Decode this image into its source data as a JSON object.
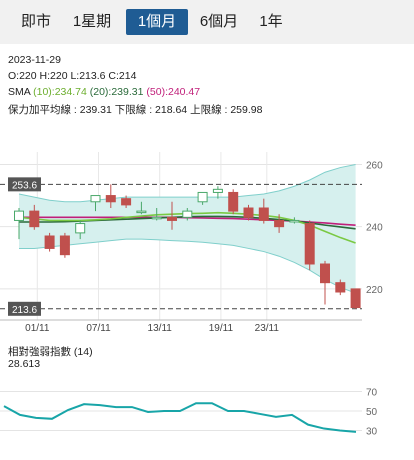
{
  "tabs": [
    {
      "label": "即市",
      "active": false
    },
    {
      "label": "1星期",
      "active": false
    },
    {
      "label": "1個月",
      "active": true
    },
    {
      "label": "6個月",
      "active": false
    },
    {
      "label": "1年",
      "active": false
    }
  ],
  "info": {
    "date": "2023-11-29",
    "ohlc": "O:220   H:220   L:213.6   C:214",
    "sma_label": "SMA",
    "sma10": "(10):234.74",
    "sma20": "(20):239.31",
    "sma50": "(50):240.47",
    "bollinger": "保力加平均線 : 239.31 下限線 : 218.64 上限線 : 259.98"
  },
  "rsi": {
    "title": "相對強弱指數 (14)",
    "value": "28.613"
  },
  "colors": {
    "up": "#4aa86a",
    "down": "#c0504d",
    "sma10": "#7ac943",
    "sma20": "#2a6a3a",
    "sma50": "#c01f7a",
    "band_fill": "#d6f0ee",
    "band_line": "#7fcfcb",
    "rsi_line": "#18a5a8",
    "tab_active": "#1f5c94"
  },
  "chart_data": {
    "type": "candlestick",
    "x_ticks": [
      "01/11",
      "07/11",
      "13/11",
      "19/11",
      "23/11"
    ],
    "y_ticks": [
      220,
      240,
      260
    ],
    "ylim": [
      210,
      264
    ],
    "price_tags": {
      "high": "253.6",
      "low": "213.6"
    },
    "candles": [
      {
        "o": 242,
        "h": 246,
        "l": 236,
        "c": 245
      },
      {
        "o": 245,
        "h": 247,
        "l": 239,
        "c": 240
      },
      {
        "o": 237,
        "h": 238,
        "l": 232,
        "c": 233
      },
      {
        "o": 237,
        "h": 238,
        "l": 230,
        "c": 231
      },
      {
        "o": 238,
        "h": 242,
        "l": 236,
        "c": 241
      },
      {
        "o": 248,
        "h": 250,
        "l": 245,
        "c": 250
      },
      {
        "o": 250,
        "h": 253.6,
        "l": 246,
        "c": 248
      },
      {
        "o": 249,
        "h": 250,
        "l": 246,
        "c": 247
      },
      {
        "o": 245,
        "h": 248,
        "l": 244,
        "c": 245
      },
      {
        "o": 243,
        "h": 246,
        "l": 242,
        "c": 243
      },
      {
        "o": 243,
        "h": 248,
        "l": 239,
        "c": 242
      },
      {
        "o": 243,
        "h": 246,
        "l": 242,
        "c": 245
      },
      {
        "o": 248,
        "h": 251,
        "l": 247,
        "c": 251
      },
      {
        "o": 251,
        "h": 253,
        "l": 249,
        "c": 252
      },
      {
        "o": 251,
        "h": 252,
        "l": 244,
        "c": 245
      },
      {
        "o": 246,
        "h": 247,
        "l": 242,
        "c": 243
      },
      {
        "o": 246,
        "h": 249,
        "l": 241,
        "c": 242
      },
      {
        "o": 242,
        "h": 244,
        "l": 238,
        "c": 240
      },
      {
        "o": 242,
        "h": 243,
        "l": 241,
        "c": 242
      },
      {
        "o": 241,
        "h": 242,
        "l": 226,
        "c": 228
      },
      {
        "o": 228,
        "h": 229,
        "l": 215,
        "c": 222
      },
      {
        "o": 222,
        "h": 223,
        "l": 218,
        "c": 219
      },
      {
        "o": 220,
        "h": 220,
        "l": 213.6,
        "c": 214
      }
    ],
    "sma10": [
      243,
      242.5,
      242,
      242,
      242,
      242.2,
      242.5,
      243,
      243.4,
      243.8,
      244,
      244.2,
      244.3,
      244.5,
      244.3,
      244,
      243.6,
      243,
      242,
      240.5,
      238.5,
      236.5,
      234.74
    ],
    "sma20": [
      241.5,
      241.5,
      241.5,
      241.6,
      241.8,
      242,
      242.2,
      242.4,
      242.6,
      242.8,
      243,
      243.2,
      243.3,
      243.3,
      243.2,
      243,
      242.7,
      242.3,
      241.8,
      241.2,
      240.5,
      239.9,
      239.31
    ],
    "sma50": [
      243,
      243,
      243,
      243,
      243,
      243,
      243,
      243,
      243,
      243,
      243,
      242.9,
      242.8,
      242.7,
      242.6,
      242.4,
      242.2,
      242,
      241.8,
      241.5,
      241.2,
      240.8,
      240.47
    ],
    "band_upper": [
      250.5,
      249.5,
      248.5,
      248,
      248,
      248.5,
      249,
      249.5,
      249.5,
      249.5,
      249.5,
      249.5,
      249.5,
      249.5,
      249.5,
      250,
      250.5,
      251.5,
      253,
      255,
      257.5,
      259,
      259.98
    ],
    "band_lower": [
      233,
      233,
      233.5,
      234,
      234.5,
      235,
      235.5,
      236,
      236,
      235.8,
      235.5,
      235.3,
      235,
      234.5,
      234,
      233,
      232,
      230.5,
      228.5,
      226,
      223,
      220.5,
      218.64
    ],
    "rsi_ticks": [
      30,
      50,
      70
    ],
    "rsi_ylim": [
      10,
      90
    ],
    "rsi_values": [
      55,
      46,
      43,
      42,
      51,
      57,
      56,
      54,
      54,
      49,
      50,
      50,
      58,
      58,
      50,
      50,
      47,
      44,
      46,
      36,
      32,
      30,
      28.613
    ]
  }
}
